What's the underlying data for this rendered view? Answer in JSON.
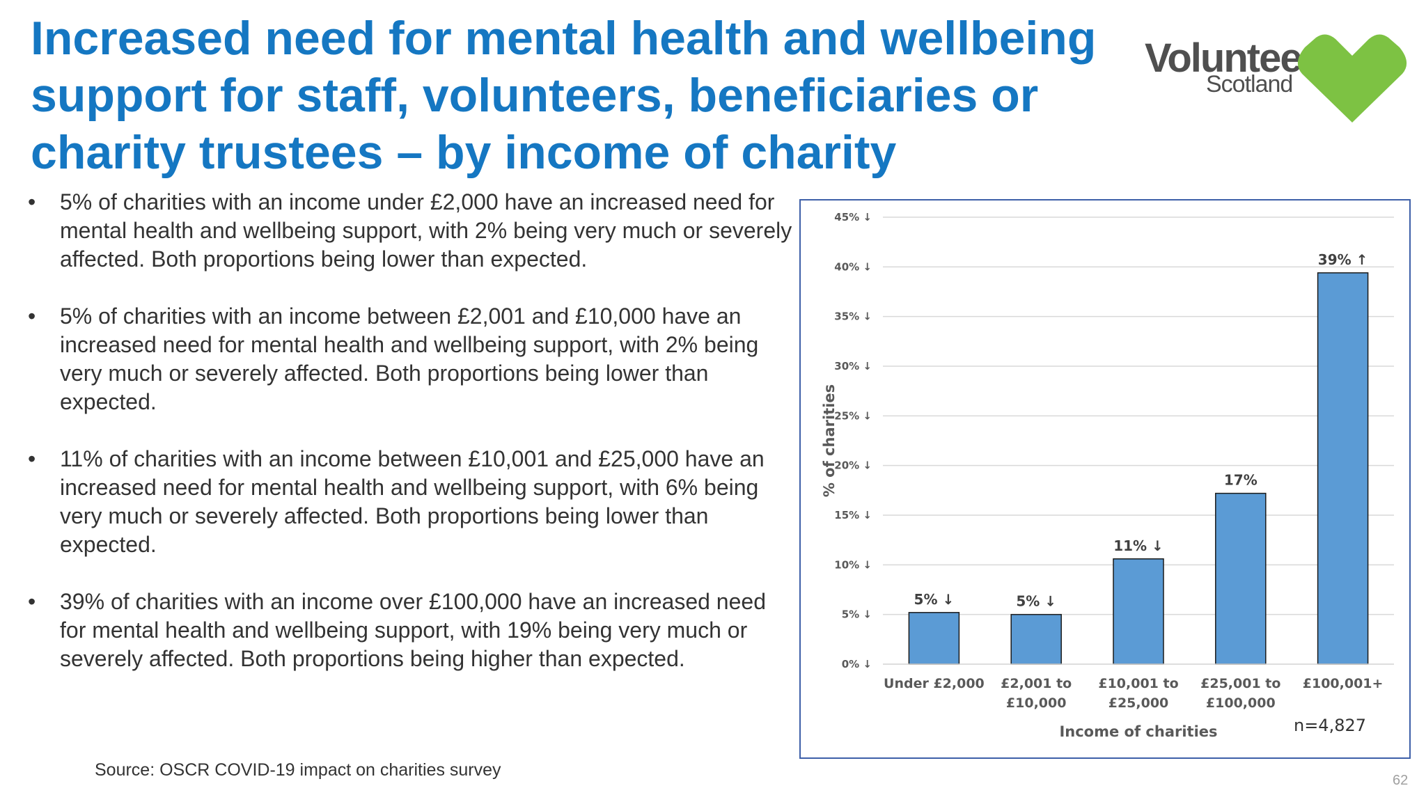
{
  "title": {
    "line1": "Increased need for mental health and wellbeing",
    "line2": "support for staff, volunteers, beneficiaries or",
    "line3": "charity trustees – by income of charity"
  },
  "logo": {
    "word1": "Volunteer",
    "word2": "Scotland",
    "heart_color": "#7dc243",
    "text_color": "#4f4f4f"
  },
  "bullets": [
    {
      "symbol": "•",
      "text": "5% of charities with an income under £2,000 have an increased need for mental health and wellbeing support, with 2% being very much or severely affected. Both proportions being lower than expected."
    },
    {
      "symbol": "•",
      "text": "5% of charities with an income between £2,001 and £10,000 have an increased need for mental health and wellbeing support, with 2% being very much or severely affected. Both proportions being lower than expected."
    },
    {
      "symbol": "•",
      "text": "11% of charities with an income between £10,001 and £25,000 have an increased need for mental health and wellbeing support, with 6% being very much or severely affected. Both proportions being lower than expected."
    },
    {
      "symbol": "•",
      "text": "39% of charities with an income over £100,000 have an increased need for mental health and wellbeing support, with 19% being very much or severely affected. Both proportions being higher than expected."
    }
  ],
  "source": "Source: OSCR COVID-19 impact on charities survey",
  "page_number": "62",
  "chart_data": {
    "type": "bar",
    "title": "",
    "xlabel": "Income of charities",
    "ylabel": "% of charities",
    "ylim": [
      0,
      45
    ],
    "grid": true,
    "yticks": [
      {
        "value": 0,
        "label": "0% ↓"
      },
      {
        "value": 5,
        "label": "5% ↓"
      },
      {
        "value": 10,
        "label": "10% ↓"
      },
      {
        "value": 15,
        "label": "15% ↓"
      },
      {
        "value": 20,
        "label": "20% ↓"
      },
      {
        "value": 25,
        "label": "25% ↓"
      },
      {
        "value": 30,
        "label": "30% ↓"
      },
      {
        "value": 35,
        "label": "35% ↓"
      },
      {
        "value": 40,
        "label": "40% ↓"
      },
      {
        "value": 45,
        "label": "45% ↓"
      }
    ],
    "categories": [
      [
        "Under £2,000"
      ],
      [
        "£2,001 to",
        "£10,000"
      ],
      [
        "£10,001 to",
        "£25,000"
      ],
      [
        "£25,001 to",
        "£100,000"
      ],
      [
        "£100,001+"
      ]
    ],
    "values": [
      5.2,
      5.0,
      10.6,
      17.2,
      39.4
    ],
    "data_labels": [
      "5% ↓",
      "5% ↓",
      "11% ↓",
      "17%",
      "39% ↑"
    ],
    "bar_color": "#5b9bd5",
    "annotation": "n=4,827"
  }
}
